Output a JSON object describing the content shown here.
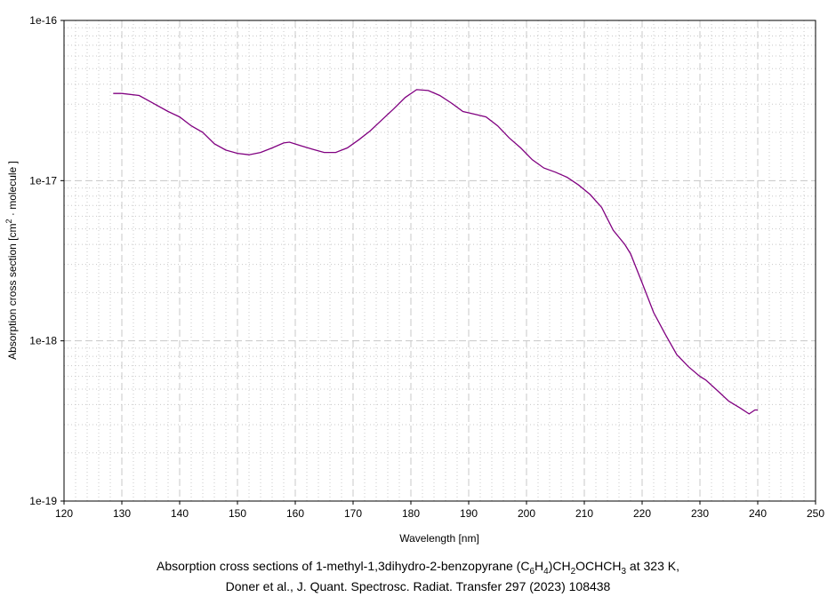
{
  "chart_data": {
    "type": "line",
    "title": "Absorption cross sections of 1-methyl-1,3dihydro-2-benzopyrane (C6H4)CH2OCHCH3 at 323 K,",
    "title_parts": {
      "pre": "Absorption cross sections of 1-methyl-1,3dihydro-2-benzopyrane (C",
      "s1": "6",
      "m1": "H",
      "s2": "4",
      "m2": ")CH",
      "s3": "2",
      "m3": "OCHCH",
      "s4": "3",
      "post": " at 323 K,"
    },
    "subtitle": "Doner et al., J. Quant. Spectrosc. Radiat. Transfer 297 (2023) 108438",
    "xlabel": "Wavelength [nm]",
    "ylabel": "Absorption cross section [cm2 · molecule ]",
    "ylabel_parts": {
      "pre": "Absorption cross section [cm",
      "sup": "2",
      "post": " · molecule ]"
    },
    "xlim": [
      120,
      250
    ],
    "ylim": [
      1e-19,
      1e-16
    ],
    "yscale": "log",
    "grid": true,
    "xticks": [
      "120",
      "130",
      "140",
      "150",
      "160",
      "170",
      "180",
      "190",
      "200",
      "210",
      "220",
      "230",
      "240",
      "250"
    ],
    "yticks": [
      "1e-16",
      "1e-17",
      "1e-18",
      "1e-19"
    ],
    "color": "#800080",
    "series": [
      {
        "name": "cross section",
        "x": [
          128.5,
          130,
          133,
          135,
          138,
          140,
          142,
          144,
          146,
          148,
          150,
          152,
          154,
          156,
          158,
          159,
          161,
          163,
          165,
          167,
          169,
          171,
          173,
          175,
          177,
          179,
          181,
          183,
          185,
          187,
          189,
          191,
          193,
          195,
          197,
          199,
          201,
          203,
          205,
          207,
          209,
          211,
          213,
          215,
          217,
          218,
          220,
          222,
          224,
          226,
          228,
          230,
          231,
          233,
          235,
          237,
          238.5,
          239.5,
          240
        ],
        "y": [
          3.5e-17,
          3.5e-17,
          3.4e-17,
          3.1e-17,
          2.7e-17,
          2.5e-17,
          2.2e-17,
          2e-17,
          1.7e-17,
          1.55e-17,
          1.48e-17,
          1.45e-17,
          1.5e-17,
          1.6e-17,
          1.72e-17,
          1.74e-17,
          1.65e-17,
          1.57e-17,
          1.5e-17,
          1.5e-17,
          1.6e-17,
          1.8e-17,
          2.05e-17,
          2.4e-17,
          2.8e-17,
          3.3e-17,
          3.7e-17,
          3.65e-17,
          3.4e-17,
          3.05e-17,
          2.7e-17,
          2.6e-17,
          2.5e-17,
          2.2e-17,
          1.85e-17,
          1.6e-17,
          1.35e-17,
          1.2e-17,
          1.13e-17,
          1.05e-17,
          9.4e-18,
          8.2e-18,
          6.8e-18,
          4.9e-18,
          4e-18,
          3.5e-18,
          2.3e-18,
          1.5e-18,
          1.1e-18,
          8.2e-19,
          6.9e-19,
          6e-19,
          5.7e-19,
          4.9e-19,
          4.2e-19,
          3.8e-19,
          3.5e-19,
          3.7e-19,
          3.7e-19
        ]
      }
    ]
  }
}
